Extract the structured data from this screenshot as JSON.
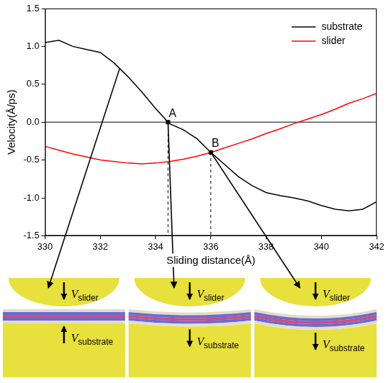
{
  "chart_data": {
    "type": "line",
    "x_label": "Sliding distance(Å)",
    "y_label": "Velocity(Å/ps)",
    "x": [
      330,
      330.5,
      331,
      331.5,
      332,
      332.5,
      333,
      333.5,
      334,
      334.5,
      335,
      335.5,
      336,
      336.5,
      337,
      337.5,
      338,
      338.5,
      339,
      339.5,
      340,
      340.5,
      341,
      341.5,
      342
    ],
    "series": [
      {
        "name": "substrate",
        "color": "#000000",
        "line_style": "solid",
        "values": [
          1.05,
          1.08,
          1.0,
          0.96,
          0.92,
          0.78,
          0.6,
          0.4,
          0.18,
          -0.02,
          -0.1,
          -0.22,
          -0.4,
          -0.56,
          -0.72,
          -0.84,
          -0.93,
          -0.97,
          -1.0,
          -1.04,
          -1.1,
          -1.15,
          -1.17,
          -1.15,
          -1.05
        ]
      },
      {
        "name": "slider",
        "color": "#ff0000",
        "line_style": "solid",
        "values": [
          -0.32,
          -0.37,
          -0.42,
          -0.46,
          -0.5,
          -0.52,
          -0.54,
          -0.55,
          -0.54,
          -0.52,
          -0.49,
          -0.45,
          -0.4,
          -0.34,
          -0.28,
          -0.22,
          -0.15,
          -0.09,
          -0.02,
          0.04,
          0.1,
          0.17,
          0.25,
          0.31,
          0.38
        ]
      }
    ],
    "xlim": [
      330,
      342
    ],
    "xticks": [
      330,
      332,
      334,
      336,
      338,
      340,
      342
    ],
    "ylim": [
      -1.5,
      1.5
    ],
    "yticks": [
      -1.5,
      {
        "value": -1,
        "label": "-1.0"
      },
      -0.5,
      {
        "value": 0,
        "label": "0.0"
      },
      0.5,
      {
        "value": 1,
        "label": "1.0"
      },
      1.5
    ],
    "hlines": [
      0
    ],
    "annotations": [
      {
        "label": "A",
        "x": 334.45,
        "y": 0.0
      },
      {
        "label": "B",
        "x": 336,
        "y": -0.4
      }
    ],
    "grid": false,
    "legend": "upper right"
  },
  "diagram": {
    "panels": [
      {
        "source": {
          "x": 332.7,
          "y": 0.71
        },
        "slider": {
          "label": {
            "text": "V",
            "subscript": "slider"
          },
          "arrow": "down"
        },
        "substrate": {
          "label": {
            "text": "V",
            "subscript": "substrate"
          },
          "arrow": "up"
        }
      },
      {
        "source": {
          "x": 334.45,
          "y": 0.0
        },
        "slider": {
          "label": {
            "text": "V",
            "subscript": "slider"
          },
          "arrow": "down"
        },
        "substrate": {
          "label": {
            "text": "V",
            "subscript": "substrate"
          },
          "arrow": "down"
        }
      },
      {
        "source": {
          "x": 336,
          "y": -0.4
        },
        "slider": {
          "label": {
            "text": "V",
            "subscript": "slider"
          },
          "arrow": "down"
        },
        "substrate": {
          "label": {
            "text": "V",
            "subscript": "substrate"
          },
          "arrow": "down"
        }
      }
    ]
  }
}
